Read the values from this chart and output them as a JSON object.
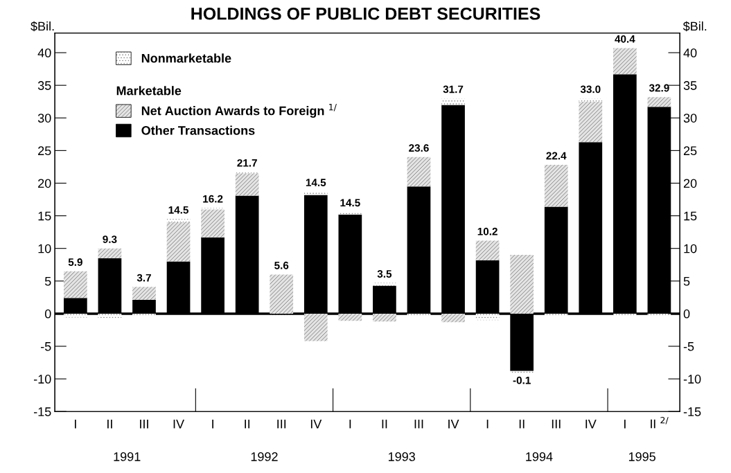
{
  "chart_data": {
    "type": "bar",
    "stacked": true,
    "title": "HOLDINGS OF PUBLIC DEBT SECURITIES",
    "ylabel": "$Bil.",
    "y2label": "$Bil.",
    "categories": [
      "I",
      "II",
      "III",
      "IV",
      "I",
      "II",
      "III",
      "IV",
      "I",
      "II",
      "III",
      "IV",
      "I",
      "II",
      "III",
      "IV",
      "I",
      "II $^{2/}$"
    ],
    "series": [
      {
        "name": "Other Transactions",
        "color": "#000000",
        "values": [
          2.4,
          8.5,
          2.1,
          8.0,
          11.7,
          18.1,
          -0.2,
          18.2,
          15.2,
          4.3,
          19.5,
          32.0,
          8.2,
          -8.8,
          16.4,
          26.3,
          36.7,
          31.7
        ]
      },
      {
        "name": "Net Auction Awards to Foreign $^{1/}$",
        "color": "#e4e4e4",
        "values": [
          4.1,
          1.5,
          2.0,
          6.0,
          4.3,
          3.4,
          6.0,
          -4.2,
          -1.1,
          -1.2,
          4.5,
          -1.3,
          3.0,
          9.0,
          6.4,
          6.2,
          4.0,
          1.5
        ]
      },
      {
        "name": "Nonmarketable",
        "color": "#ffffff",
        "values": [
          -0.6,
          -0.7,
          -0.4,
          0.5,
          0.2,
          0.2,
          -0.2,
          0.5,
          0.4,
          0.4,
          -0.4,
          1.0,
          -1.0,
          -0.3,
          -0.4,
          0.5,
          -0.3,
          -0.3
        ]
      }
    ],
    "totals": [
      "5.9",
      "9.3",
      "3.7",
      "14.5",
      "16.2",
      "21.7",
      "5.6",
      "14.5",
      "14.5",
      "3.5",
      "23.6",
      "31.7",
      "10.2",
      "-0.1",
      "22.4",
      "33.0",
      "40.4",
      "32.9"
    ],
    "legend_title": "Marketable",
    "legend": "top left",
    "ylim": [
      -15,
      43
    ],
    "yticks": [
      -15,
      -10,
      -5,
      0,
      5,
      10,
      15,
      20,
      25,
      30,
      35,
      40
    ],
    "y2lim": [
      -15,
      43
    ],
    "y2ticks": [
      -15,
      -10,
      -5,
      0,
      5,
      10,
      15,
      20,
      25,
      30,
      35,
      40
    ],
    "ref_lines": [
      {
        "axis": "y",
        "value": 0,
        "color": "#000000"
      }
    ],
    "annotations": [
      "1991",
      "1992",
      "1993",
      "1994",
      "1995"
    ],
    "grid": false
  }
}
